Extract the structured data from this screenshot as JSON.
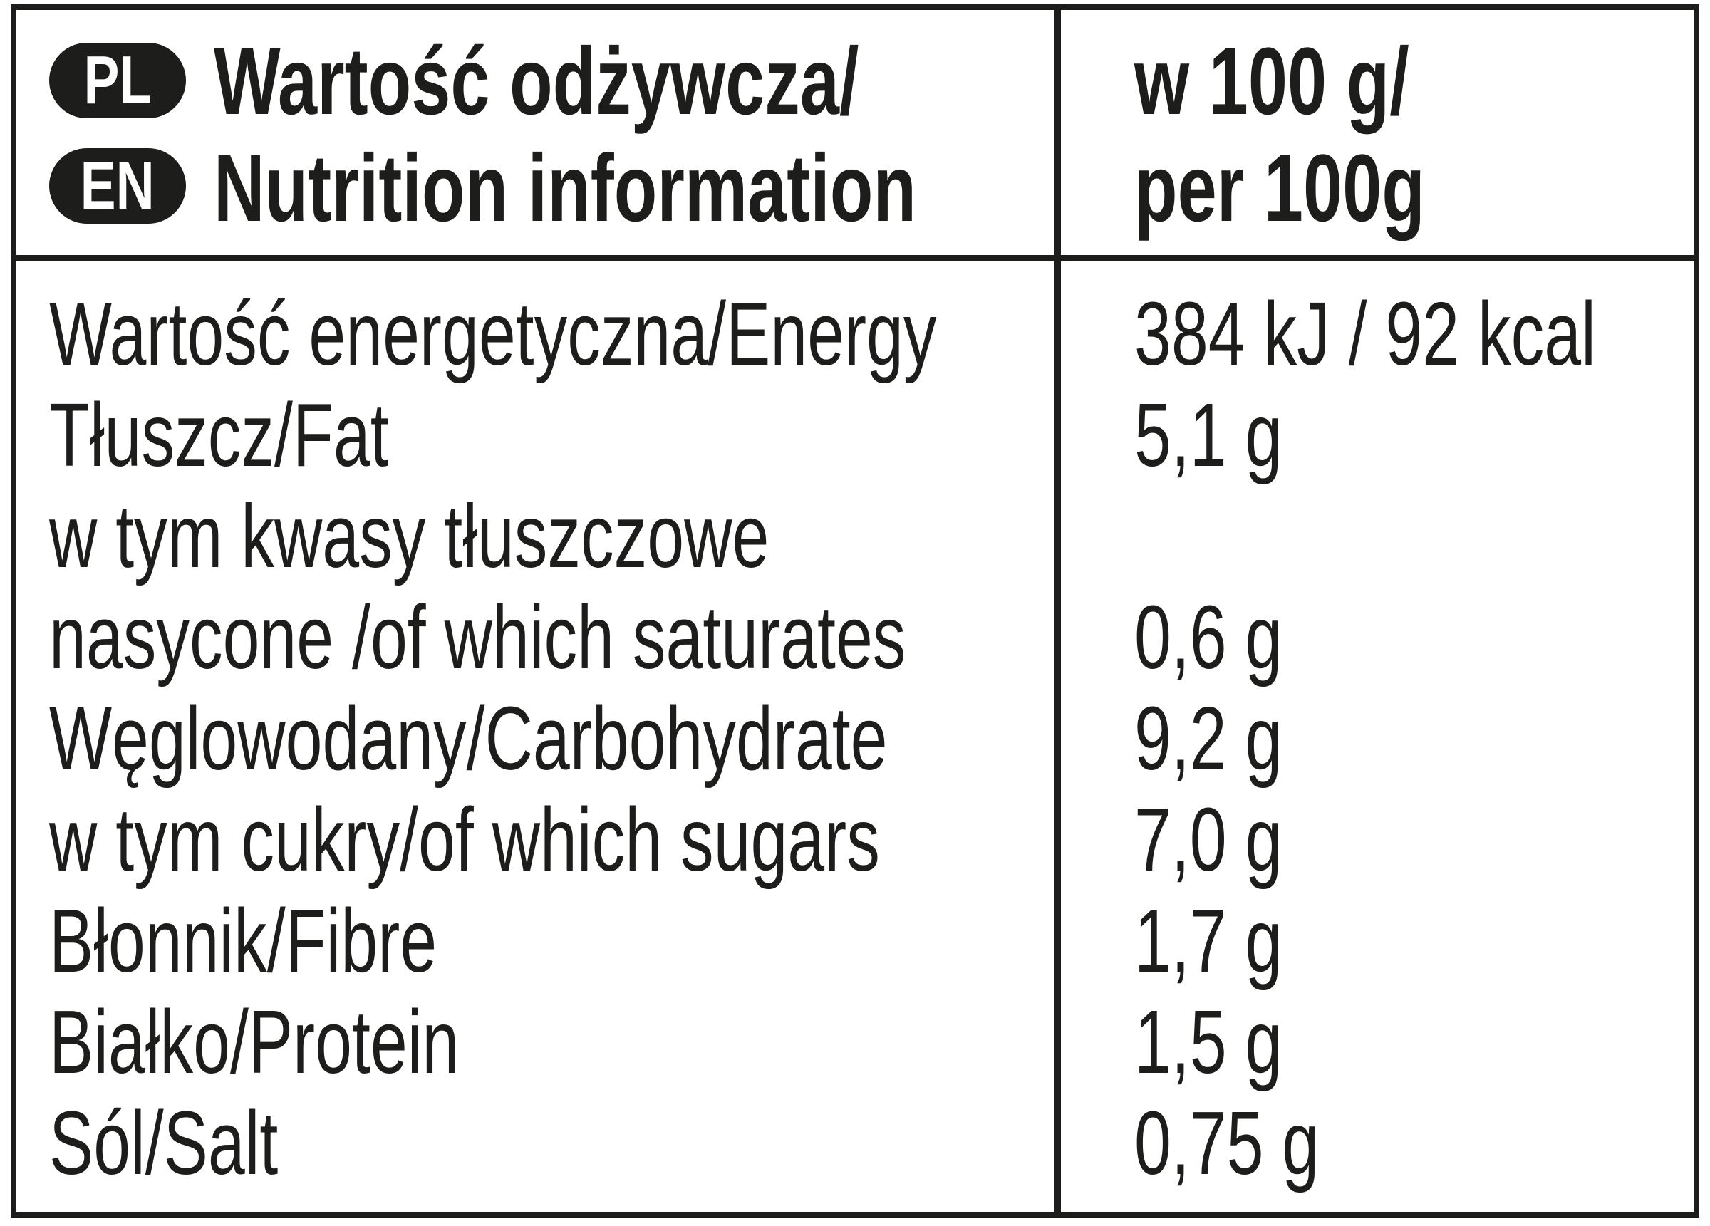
{
  "header": {
    "badges": [
      "PL",
      "EN"
    ],
    "title_lines": [
      "Wartość odżywcza/",
      "Nutrition information"
    ],
    "per_lines": [
      "w 100 g/",
      "per 100g"
    ]
  },
  "rows": [
    {
      "label": [
        "Wartość energetyczna/Energy"
      ],
      "value": "384 kJ / 92 kcal"
    },
    {
      "label": [
        "Tłuszcz/Fat"
      ],
      "value": "5,1 g"
    },
    {
      "label": [
        "w tym kwasy tłuszczowe",
        "nasycone /of which saturates"
      ],
      "value": "0,6 g"
    },
    {
      "label": [
        "Węglowodany/Carbohydrate"
      ],
      "value": "9,2 g"
    },
    {
      "label": [
        "w tym cukry/of which sugars"
      ],
      "value": "7,0 g"
    },
    {
      "label": [
        "Błonnik/Fibre"
      ],
      "value": "1,7 g"
    },
    {
      "label": [
        "Białko/Protein"
      ],
      "value": "1,5 g"
    },
    {
      "label": [
        "Sól/Salt"
      ],
      "value": "0,75 g"
    }
  ]
}
